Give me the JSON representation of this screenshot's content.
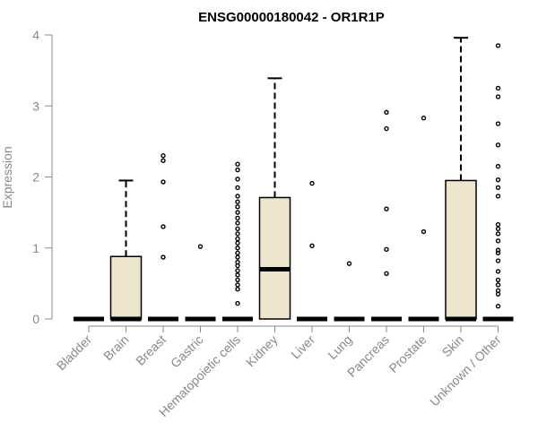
{
  "chart_data": {
    "type": "box",
    "title": "ENSG00000180042 - OR1R1P",
    "ylabel": "Expression",
    "xlabel": "",
    "ylim": [
      0,
      4
    ],
    "yticks": [
      0,
      1,
      2,
      3,
      4
    ],
    "box_fill": "#ede6cc",
    "categories": [
      "Bladder",
      "Brain",
      "Breast",
      "Gastric",
      "Hematopoietic cells",
      "Kidney",
      "Liver",
      "Lung",
      "Pancreas",
      "Prostate",
      "Skin",
      "Unknown / Other"
    ],
    "boxes": [
      {
        "q1": 0,
        "median": 0,
        "q3": 0,
        "whisker_low": 0,
        "whisker_high": 0,
        "outliers": []
      },
      {
        "q1": 0,
        "median": 0,
        "q3": 0.88,
        "whisker_low": 0,
        "whisker_high": 1.95,
        "outliers": []
      },
      {
        "q1": 0,
        "median": 0,
        "q3": 0,
        "whisker_low": 0,
        "whisker_high": 0,
        "outliers": [
          0.87,
          1.3,
          1.93,
          2.23,
          2.3
        ]
      },
      {
        "q1": 0,
        "median": 0,
        "q3": 0,
        "whisker_low": 0,
        "whisker_high": 0,
        "outliers": [
          1.02
        ]
      },
      {
        "q1": 0,
        "median": 0,
        "q3": 0,
        "whisker_low": 0,
        "whisker_high": 0,
        "outliers": [
          0.22,
          0.42,
          0.48,
          0.55,
          0.62,
          0.68,
          0.75,
          0.8,
          0.87,
          0.93,
          1.0,
          1.07,
          1.13,
          1.2,
          1.27,
          1.35,
          1.42,
          1.5,
          1.58,
          1.65,
          1.73,
          1.85,
          1.97,
          2.1,
          2.18
        ]
      },
      {
        "q1": 0,
        "median": 0.7,
        "q3": 1.71,
        "whisker_low": 0,
        "whisker_high": 3.39,
        "outliers": []
      },
      {
        "q1": 0,
        "median": 0,
        "q3": 0,
        "whisker_low": 0,
        "whisker_high": 0,
        "outliers": [
          1.03,
          1.91
        ]
      },
      {
        "q1": 0,
        "median": 0,
        "q3": 0,
        "whisker_low": 0,
        "whisker_high": 0,
        "outliers": [
          0.78
        ]
      },
      {
        "q1": 0,
        "median": 0,
        "q3": 0,
        "whisker_low": 0,
        "whisker_high": 0,
        "outliers": [
          0.64,
          0.98,
          1.55,
          2.68,
          2.91
        ]
      },
      {
        "q1": 0,
        "median": 0,
        "q3": 0,
        "whisker_low": 0,
        "whisker_high": 0,
        "outliers": [
          1.23,
          2.83
        ]
      },
      {
        "q1": 0,
        "median": 0,
        "q3": 1.95,
        "whisker_low": 0,
        "whisker_high": 3.96,
        "outliers": []
      },
      {
        "q1": 0,
        "median": 0,
        "q3": 0,
        "whisker_low": 0,
        "whisker_high": 0,
        "outliers": [
          0.18,
          0.35,
          0.4,
          0.48,
          0.55,
          0.67,
          0.82,
          0.93,
          0.97,
          1.1,
          1.2,
          1.27,
          1.33,
          1.73,
          1.85,
          1.96,
          2.15,
          2.45,
          2.75,
          3.13,
          3.25,
          3.85
        ]
      }
    ]
  }
}
